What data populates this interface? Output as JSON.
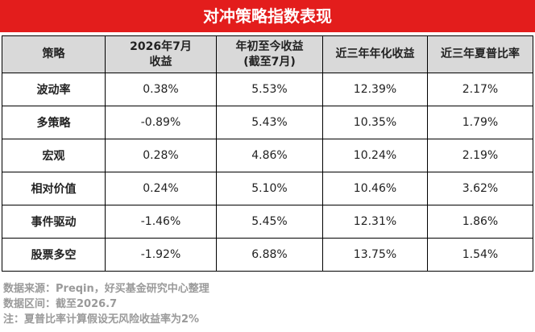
{
  "title": "对冲策略指数表现",
  "table": {
    "header": [
      [
        "策略"
      ],
      [
        "2026年7月",
        "收益"
      ],
      [
        "年初至今收益",
        "(截至7月)"
      ],
      [
        "近三年年化收益"
      ],
      [
        "近三年夏普比率"
      ]
    ],
    "rows": [
      [
        "波动率",
        "0.38%",
        "5.53%",
        "12.39%",
        "2.17%"
      ],
      [
        "多策略",
        "-0.89%",
        "5.43%",
        "10.35%",
        "1.79%"
      ],
      [
        "宏观",
        "0.28%",
        "4.86%",
        "10.24%",
        "2.19%"
      ],
      [
        "相对价值",
        "0.24%",
        "5.10%",
        "10.46%",
        "3.62%"
      ],
      [
        "事件驱动",
        "-1.46%",
        "5.45%",
        "12.31%",
        "1.86%"
      ],
      [
        "股票多空",
        "-1.92%",
        "6.88%",
        "13.75%",
        "1.54%"
      ]
    ]
  },
  "notes": [
    "数据来源：Preqin，好买基金研究中心整理",
    "数据区间：截至2026.7",
    "注：夏普比率计算假设无风险收益率为2%"
  ]
}
